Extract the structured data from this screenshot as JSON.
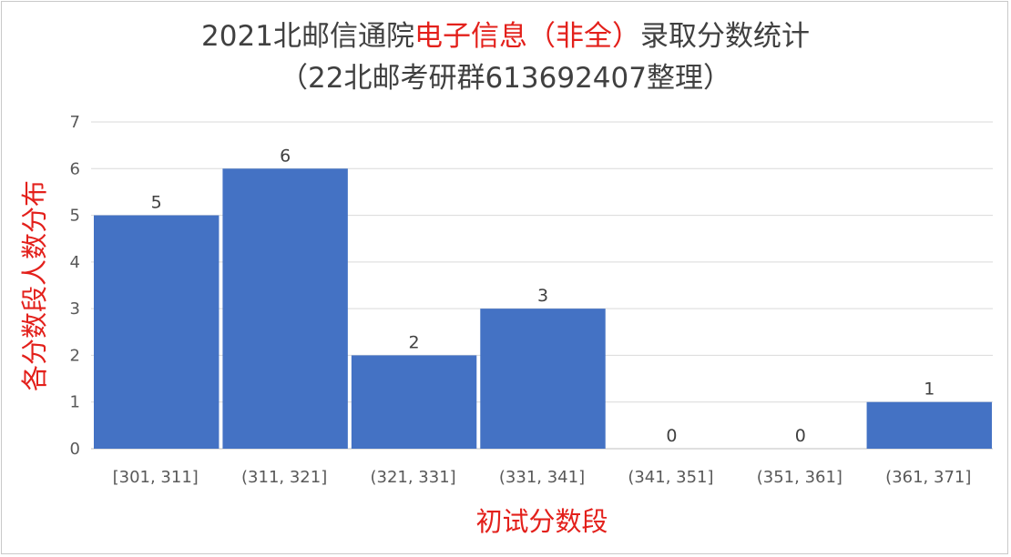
{
  "chart_data": {
    "type": "bar",
    "title_parts": [
      {
        "text": "2021北邮信通院",
        "color": "#404040"
      },
      {
        "text": "电子信息（非全）",
        "color": "#e3201b"
      },
      {
        "text": "录取分数统计",
        "color": "#404040"
      }
    ],
    "subtitle": "（22北邮考研群613692407整理）",
    "xlabel": "初试分数段",
    "ylabel": "各分数段人数分布",
    "categories": [
      "[301, 311]",
      "(311, 321]",
      "(321, 331]",
      "(331, 341]",
      "(341, 351]",
      "(351, 361]",
      "(361, 371]"
    ],
    "values": [
      5,
      6,
      2,
      3,
      0,
      0,
      1
    ],
    "ylim": [
      0,
      7
    ],
    "yticks": [
      "0",
      "1",
      "2",
      "3",
      "4",
      "5",
      "6",
      "7"
    ],
    "grid": true,
    "bar_color": "#4472c4",
    "legend": "none"
  }
}
